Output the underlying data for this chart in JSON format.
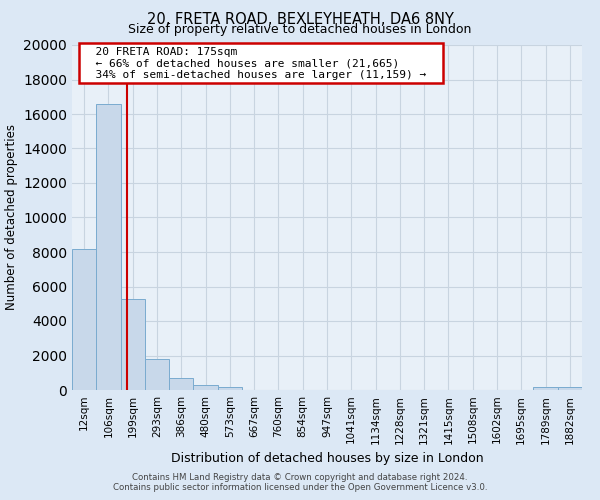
{
  "title_line1": "20, FRETA ROAD, BEXLEYHEATH, DA6 8NY",
  "title_line2": "Size of property relative to detached houses in London",
  "xlabel": "Distribution of detached houses by size in London",
  "ylabel": "Number of detached properties",
  "bar_labels": [
    "12sqm",
    "106sqm",
    "199sqm",
    "293sqm",
    "386sqm",
    "480sqm",
    "573sqm",
    "667sqm",
    "760sqm",
    "854sqm",
    "947sqm",
    "1041sqm",
    "1134sqm",
    "1228sqm",
    "1321sqm",
    "1415sqm",
    "1508sqm",
    "1602sqm",
    "1695sqm",
    "1789sqm",
    "1882sqm"
  ],
  "bar_values": [
    8200,
    16600,
    5300,
    1800,
    700,
    300,
    200,
    0,
    0,
    0,
    0,
    0,
    0,
    0,
    0,
    0,
    0,
    0,
    0,
    200,
    200
  ],
  "bar_color": "#c8d8ea",
  "bar_edge_color": "#7aabcf",
  "red_line_x": 1.75,
  "annotation_title": "20 FRETA ROAD: 175sqm",
  "annotation_line1": "← 66% of detached houses are smaller (21,665)",
  "annotation_line2": "34% of semi-detached houses are larger (11,159) →",
  "annotation_box_color": "#ffffff",
  "annotation_box_edge": "#cc0000",
  "ylim": [
    0,
    20000
  ],
  "yticks": [
    0,
    2000,
    4000,
    6000,
    8000,
    10000,
    12000,
    14000,
    16000,
    18000,
    20000
  ],
  "footer_line1": "Contains HM Land Registry data © Crown copyright and database right 2024.",
  "footer_line2": "Contains public sector information licensed under the Open Government Licence v3.0.",
  "bg_color": "#dce8f5",
  "plot_bg_color": "#e8f0f8",
  "grid_color": "#c8d4e0"
}
